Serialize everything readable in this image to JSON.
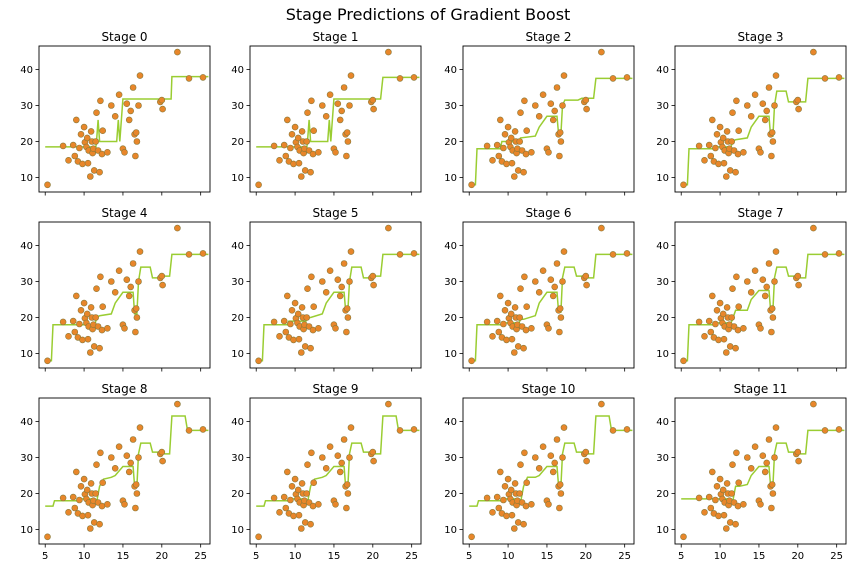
{
  "chart_data": {
    "type": "scatter",
    "title": "Stage Predictions of Gradient Boost",
    "xlim": [
      4.2,
      26.2
    ],
    "ylim": [
      6.0,
      46.5
    ],
    "xticks": [
      5,
      10,
      15,
      20,
      25
    ],
    "yticks": [
      10,
      20,
      30,
      40
    ],
    "grid": false,
    "colors": {
      "points": "#e8862a",
      "point_edge": "#8a7a3a",
      "prediction": "#9acd32"
    },
    "points": [
      {
        "x": 5.3,
        "y": 8.0
      },
      {
        "x": 7.3,
        "y": 18.8
      },
      {
        "x": 8.0,
        "y": 14.8
      },
      {
        "x": 8.6,
        "y": 19.0
      },
      {
        "x": 8.8,
        "y": 16.0
      },
      {
        "x": 9.0,
        "y": 26.0
      },
      {
        "x": 9.2,
        "y": 14.5
      },
      {
        "x": 9.4,
        "y": 18.2
      },
      {
        "x": 9.6,
        "y": 22.0
      },
      {
        "x": 9.8,
        "y": 13.8
      },
      {
        "x": 10.0,
        "y": 24.0
      },
      {
        "x": 10.1,
        "y": 19.8
      },
      {
        "x": 10.3,
        "y": 18.5
      },
      {
        "x": 10.4,
        "y": 21.0
      },
      {
        "x": 10.5,
        "y": 14.0
      },
      {
        "x": 10.6,
        "y": 17.5
      },
      {
        "x": 10.8,
        "y": 10.3
      },
      {
        "x": 10.9,
        "y": 22.8
      },
      {
        "x": 11.0,
        "y": 20.0
      },
      {
        "x": 11.1,
        "y": 16.8
      },
      {
        "x": 11.2,
        "y": 18.0
      },
      {
        "x": 11.3,
        "y": 12.0
      },
      {
        "x": 11.5,
        "y": 20.0
      },
      {
        "x": 11.6,
        "y": 28.0
      },
      {
        "x": 11.8,
        "y": 17.5
      },
      {
        "x": 12.0,
        "y": 11.5
      },
      {
        "x": 12.1,
        "y": 31.3
      },
      {
        "x": 12.3,
        "y": 16.5
      },
      {
        "x": 12.4,
        "y": 23.0
      },
      {
        "x": 13.0,
        "y": 17.0
      },
      {
        "x": 13.5,
        "y": 30.0
      },
      {
        "x": 14.0,
        "y": 27.0
      },
      {
        "x": 14.5,
        "y": 33.0
      },
      {
        "x": 15.0,
        "y": 18.0
      },
      {
        "x": 15.2,
        "y": 17.0
      },
      {
        "x": 15.5,
        "y": 30.5
      },
      {
        "x": 15.8,
        "y": 26.0
      },
      {
        "x": 16.0,
        "y": 28.5
      },
      {
        "x": 16.3,
        "y": 35.0
      },
      {
        "x": 16.5,
        "y": 22.0
      },
      {
        "x": 16.6,
        "y": 16.0
      },
      {
        "x": 16.7,
        "y": 22.5
      },
      {
        "x": 16.8,
        "y": 20.0
      },
      {
        "x": 17.0,
        "y": 30.0
      },
      {
        "x": 17.2,
        "y": 38.3
      },
      {
        "x": 19.8,
        "y": 31.0
      },
      {
        "x": 20.0,
        "y": 31.5
      },
      {
        "x": 20.1,
        "y": 29.0
      },
      {
        "x": 22.0,
        "y": 44.8
      },
      {
        "x": 23.5,
        "y": 37.5
      },
      {
        "x": 25.3,
        "y": 37.8
      }
    ],
    "stages": [
      {
        "name": "Stage 0",
        "steps": [
          [
            5.0,
            18.5
          ],
          [
            11.2,
            18.5
          ],
          [
            11.4,
            16.5
          ],
          [
            11.6,
            20.0
          ],
          [
            11.8,
            26.0
          ],
          [
            12.0,
            20.0
          ],
          [
            14.2,
            20.0
          ],
          [
            14.4,
            26.0
          ],
          [
            14.6,
            20.0
          ],
          [
            15.0,
            31.8
          ],
          [
            21.0,
            31.8
          ],
          [
            21.2,
            31.8
          ],
          [
            21.3,
            38.0
          ],
          [
            26.0,
            38.0
          ]
        ]
      },
      {
        "name": "Stage 1",
        "steps": [
          [
            5.0,
            18.5
          ],
          [
            11.2,
            18.5
          ],
          [
            11.4,
            16.5
          ],
          [
            11.6,
            20.0
          ],
          [
            11.8,
            26.0
          ],
          [
            12.0,
            20.0
          ],
          [
            14.2,
            20.0
          ],
          [
            14.4,
            26.0
          ],
          [
            14.6,
            20.0
          ],
          [
            15.0,
            31.8
          ],
          [
            21.0,
            31.8
          ],
          [
            21.3,
            37.8
          ],
          [
            26.0,
            37.8
          ]
        ]
      },
      {
        "name": "Stage 2",
        "steps": [
          [
            5.0,
            8.0
          ],
          [
            5.8,
            8.0
          ],
          [
            6.0,
            18.0
          ],
          [
            9.0,
            18.0
          ],
          [
            9.2,
            20.0
          ],
          [
            11.4,
            20.0
          ],
          [
            11.6,
            21.0
          ],
          [
            13.5,
            21.5
          ],
          [
            14.0,
            24.0
          ],
          [
            15.0,
            27.0
          ],
          [
            16.3,
            27.0
          ],
          [
            16.5,
            22.0
          ],
          [
            16.8,
            22.0
          ],
          [
            17.0,
            30.0
          ],
          [
            17.3,
            31.5
          ],
          [
            19.0,
            31.5
          ],
          [
            19.5,
            32.0
          ],
          [
            21.0,
            32.0
          ],
          [
            21.3,
            37.5
          ],
          [
            26.0,
            37.5
          ]
        ]
      },
      {
        "name": "Stage 3",
        "steps": [
          [
            5.0,
            8.0
          ],
          [
            5.8,
            8.0
          ],
          [
            6.0,
            18.0
          ],
          [
            9.0,
            18.0
          ],
          [
            9.2,
            18.5
          ],
          [
            11.4,
            18.5
          ],
          [
            11.6,
            20.0
          ],
          [
            12.0,
            20.5
          ],
          [
            13.5,
            21.0
          ],
          [
            14.0,
            24.0
          ],
          [
            15.0,
            27.0
          ],
          [
            16.3,
            27.0
          ],
          [
            16.5,
            21.5
          ],
          [
            16.8,
            21.5
          ],
          [
            17.0,
            30.0
          ],
          [
            17.3,
            34.0
          ],
          [
            18.5,
            34.0
          ],
          [
            18.8,
            31.0
          ],
          [
            21.0,
            31.0
          ],
          [
            21.3,
            37.5
          ],
          [
            26.0,
            37.5
          ]
        ]
      },
      {
        "name": "Stage 4",
        "steps": [
          [
            5.0,
            8.0
          ],
          [
            5.8,
            8.0
          ],
          [
            6.0,
            18.0
          ],
          [
            9.0,
            18.0
          ],
          [
            9.2,
            18.0
          ],
          [
            11.4,
            18.0
          ],
          [
            11.6,
            20.0
          ],
          [
            12.0,
            20.5
          ],
          [
            13.5,
            21.0
          ],
          [
            14.0,
            24.0
          ],
          [
            15.0,
            27.0
          ],
          [
            16.3,
            27.0
          ],
          [
            16.5,
            21.0
          ],
          [
            16.8,
            21.0
          ],
          [
            17.0,
            30.0
          ],
          [
            17.3,
            34.0
          ],
          [
            18.5,
            34.0
          ],
          [
            18.8,
            31.0
          ],
          [
            20.0,
            31.0
          ],
          [
            20.3,
            31.5
          ],
          [
            21.0,
            31.5
          ],
          [
            21.3,
            37.5
          ],
          [
            26.0,
            37.5
          ]
        ]
      },
      {
        "name": "Stage 5",
        "steps": [
          [
            5.0,
            8.0
          ],
          [
            5.8,
            8.0
          ],
          [
            6.0,
            18.0
          ],
          [
            9.0,
            18.0
          ],
          [
            9.2,
            19.0
          ],
          [
            11.4,
            19.0
          ],
          [
            11.6,
            20.0
          ],
          [
            12.0,
            20.0
          ],
          [
            13.5,
            21.0
          ],
          [
            14.0,
            24.0
          ],
          [
            15.0,
            27.0
          ],
          [
            16.3,
            27.0
          ],
          [
            16.5,
            22.0
          ],
          [
            16.8,
            22.0
          ],
          [
            17.0,
            30.0
          ],
          [
            17.3,
            34.0
          ],
          [
            18.5,
            34.0
          ],
          [
            18.8,
            31.0
          ],
          [
            20.0,
            31.0
          ],
          [
            20.3,
            31.5
          ],
          [
            21.0,
            31.5
          ],
          [
            21.3,
            37.5
          ],
          [
            26.0,
            37.5
          ]
        ]
      },
      {
        "name": "Stage 6",
        "steps": [
          [
            5.0,
            8.0
          ],
          [
            5.8,
            8.0
          ],
          [
            6.0,
            18.0
          ],
          [
            9.0,
            18.0
          ],
          [
            9.2,
            18.5
          ],
          [
            11.4,
            18.5
          ],
          [
            11.6,
            19.5
          ],
          [
            12.0,
            19.5
          ],
          [
            13.5,
            20.5
          ],
          [
            14.0,
            24.0
          ],
          [
            15.0,
            27.0
          ],
          [
            16.3,
            27.0
          ],
          [
            16.5,
            21.5
          ],
          [
            16.8,
            21.5
          ],
          [
            17.0,
            31.0
          ],
          [
            17.3,
            34.0
          ],
          [
            18.5,
            34.0
          ],
          [
            18.8,
            31.5
          ],
          [
            20.0,
            31.5
          ],
          [
            20.3,
            31.0
          ],
          [
            21.0,
            31.0
          ],
          [
            21.3,
            37.5
          ],
          [
            26.0,
            37.5
          ]
        ]
      },
      {
        "name": "Stage 7",
        "steps": [
          [
            5.0,
            8.0
          ],
          [
            5.8,
            8.0
          ],
          [
            6.0,
            18.0
          ],
          [
            9.0,
            18.0
          ],
          [
            9.2,
            18.5
          ],
          [
            11.4,
            18.5
          ],
          [
            11.6,
            19.5
          ],
          [
            12.0,
            22.0
          ],
          [
            13.5,
            22.0
          ],
          [
            14.0,
            25.0
          ],
          [
            15.0,
            27.5
          ],
          [
            16.3,
            27.5
          ],
          [
            16.5,
            22.0
          ],
          [
            16.8,
            22.0
          ],
          [
            17.0,
            31.0
          ],
          [
            17.3,
            34.0
          ],
          [
            18.5,
            34.0
          ],
          [
            18.8,
            31.5
          ],
          [
            20.0,
            31.5
          ],
          [
            20.3,
            31.0
          ],
          [
            21.0,
            31.0
          ],
          [
            21.3,
            37.5
          ],
          [
            26.0,
            37.5
          ]
        ]
      },
      {
        "name": "Stage 8",
        "steps": [
          [
            5.0,
            16.5
          ],
          [
            6.0,
            16.5
          ],
          [
            6.2,
            18.0
          ],
          [
            9.0,
            18.0
          ],
          [
            9.2,
            18.5
          ],
          [
            11.4,
            18.5
          ],
          [
            11.6,
            17.5
          ],
          [
            12.0,
            22.0
          ],
          [
            12.5,
            24.0
          ],
          [
            13.5,
            24.5
          ],
          [
            14.0,
            25.0
          ],
          [
            15.0,
            27.5
          ],
          [
            16.3,
            27.5
          ],
          [
            16.5,
            22.0
          ],
          [
            16.8,
            22.0
          ],
          [
            17.0,
            31.0
          ],
          [
            17.3,
            34.0
          ],
          [
            18.5,
            34.0
          ],
          [
            18.8,
            31.5
          ],
          [
            20.0,
            31.5
          ],
          [
            20.3,
            31.0
          ],
          [
            21.0,
            31.0
          ],
          [
            21.3,
            41.5
          ],
          [
            23.0,
            41.5
          ],
          [
            23.3,
            37.5
          ],
          [
            26.0,
            37.5
          ]
        ]
      },
      {
        "name": "Stage 9",
        "steps": [
          [
            5.0,
            16.5
          ],
          [
            6.0,
            16.5
          ],
          [
            6.2,
            18.0
          ],
          [
            9.0,
            18.0
          ],
          [
            9.2,
            18.5
          ],
          [
            11.4,
            18.5
          ],
          [
            11.6,
            17.5
          ],
          [
            12.0,
            22.0
          ],
          [
            12.5,
            24.0
          ],
          [
            13.5,
            24.5
          ],
          [
            14.0,
            25.0
          ],
          [
            15.0,
            27.5
          ],
          [
            16.3,
            27.5
          ],
          [
            16.5,
            22.0
          ],
          [
            16.8,
            22.0
          ],
          [
            17.0,
            31.0
          ],
          [
            17.3,
            34.0
          ],
          [
            18.5,
            34.0
          ],
          [
            18.8,
            31.5
          ],
          [
            20.0,
            31.5
          ],
          [
            20.3,
            31.0
          ],
          [
            21.0,
            31.0
          ],
          [
            21.3,
            41.5
          ],
          [
            23.0,
            41.5
          ],
          [
            23.3,
            37.5
          ],
          [
            26.0,
            37.5
          ]
        ]
      },
      {
        "name": "Stage 10",
        "steps": [
          [
            5.0,
            16.5
          ],
          [
            6.0,
            16.5
          ],
          [
            6.2,
            18.0
          ],
          [
            9.0,
            18.0
          ],
          [
            9.2,
            18.5
          ],
          [
            11.4,
            18.5
          ],
          [
            11.6,
            17.5
          ],
          [
            12.0,
            22.0
          ],
          [
            12.5,
            24.5
          ],
          [
            13.5,
            24.5
          ],
          [
            14.0,
            25.0
          ],
          [
            15.0,
            27.5
          ],
          [
            16.3,
            27.5
          ],
          [
            16.5,
            22.0
          ],
          [
            16.8,
            22.0
          ],
          [
            17.0,
            31.0
          ],
          [
            17.3,
            34.0
          ],
          [
            18.5,
            34.0
          ],
          [
            18.8,
            31.5
          ],
          [
            20.0,
            31.5
          ],
          [
            20.3,
            31.0
          ],
          [
            21.0,
            31.0
          ],
          [
            21.3,
            41.5
          ],
          [
            23.0,
            41.5
          ],
          [
            23.3,
            37.5
          ],
          [
            26.0,
            37.5
          ]
        ]
      },
      {
        "name": "Stage 11",
        "steps": [
          [
            5.0,
            18.5
          ],
          [
            9.0,
            18.5
          ],
          [
            9.2,
            18.5
          ],
          [
            11.4,
            18.5
          ],
          [
            11.6,
            17.5
          ],
          [
            12.0,
            22.0
          ],
          [
            12.5,
            22.0
          ],
          [
            13.5,
            22.5
          ],
          [
            14.0,
            25.0
          ],
          [
            15.0,
            27.5
          ],
          [
            16.3,
            27.5
          ],
          [
            16.5,
            22.0
          ],
          [
            16.8,
            22.0
          ],
          [
            17.0,
            31.0
          ],
          [
            17.3,
            34.0
          ],
          [
            18.5,
            34.0
          ],
          [
            18.8,
            31.5
          ],
          [
            20.0,
            31.5
          ],
          [
            20.3,
            31.0
          ],
          [
            21.0,
            31.0
          ],
          [
            21.3,
            37.5
          ],
          [
            26.0,
            37.5
          ]
        ]
      }
    ]
  }
}
